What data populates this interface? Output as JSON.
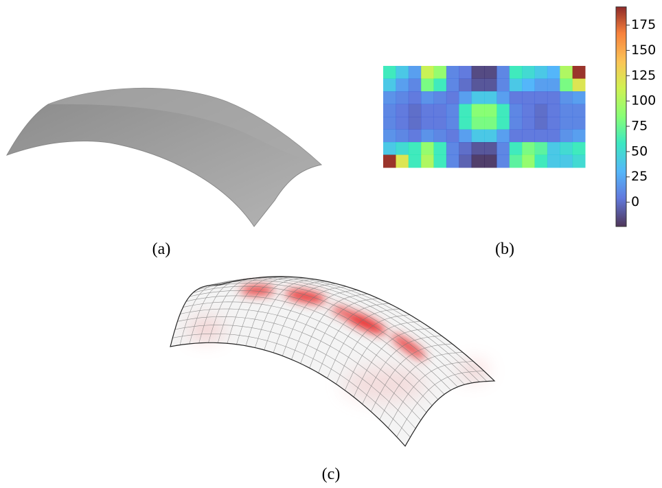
{
  "panels": {
    "a": {
      "caption": "(a)"
    },
    "b": {
      "caption": "(b)"
    },
    "c": {
      "caption": "(c)"
    }
  },
  "heatmap": {
    "values": [
      [
        60,
        40,
        20,
        110,
        90,
        10,
        5,
        -15,
        -15,
        10,
        60,
        50,
        40,
        30,
        100,
        190
      ],
      [
        40,
        20,
        10,
        80,
        60,
        10,
        0,
        -10,
        -10,
        10,
        40,
        30,
        20,
        20,
        80,
        120
      ],
      [
        15,
        10,
        5,
        15,
        10,
        5,
        20,
        40,
        40,
        20,
        5,
        5,
        5,
        5,
        15,
        20
      ],
      [
        10,
        5,
        0,
        5,
        5,
        10,
        60,
        85,
        85,
        60,
        10,
        5,
        0,
        5,
        10,
        10
      ],
      [
        10,
        5,
        0,
        5,
        5,
        10,
        60,
        80,
        80,
        60,
        10,
        5,
        0,
        5,
        10,
        10
      ],
      [
        15,
        10,
        5,
        15,
        10,
        5,
        20,
        40,
        40,
        20,
        5,
        5,
        5,
        5,
        15,
        20
      ],
      [
        40,
        50,
        60,
        90,
        60,
        10,
        0,
        -10,
        -10,
        10,
        60,
        80,
        70,
        40,
        50,
        60
      ],
      [
        190,
        120,
        60,
        100,
        60,
        10,
        -5,
        -20,
        -20,
        10,
        70,
        90,
        60,
        40,
        40,
        50
      ]
    ]
  },
  "colorbar": {
    "limits": [
      -24,
      193
    ],
    "ticks": [
      0,
      25,
      50,
      75,
      100,
      125,
      150,
      175
    ]
  }
}
